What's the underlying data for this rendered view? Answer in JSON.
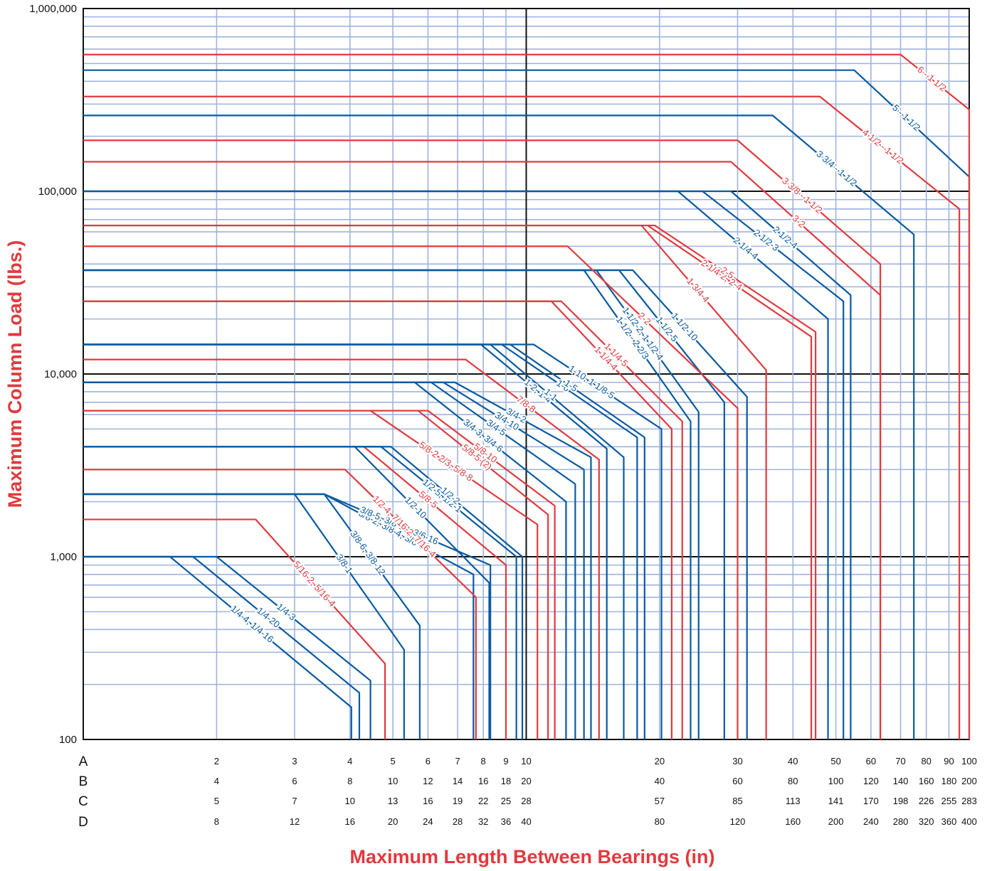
{
  "chart_data": {
    "type": "line",
    "title": "",
    "xlabel": "Maximum Length Between Bearings (in)",
    "ylabel": "Maximum Column Load (lbs.)",
    "yscale": "log",
    "xscale": "log",
    "ylim": [
      100,
      1000000
    ],
    "xlim_row_A": [
      1,
      100
    ],
    "y_tick_labels": [
      "100",
      "1,000",
      "10,000",
      "100,000",
      "1,000,000"
    ],
    "x_scales": [
      {
        "name": "A",
        "ticks": [
          2,
          3,
          4,
          5,
          6,
          7,
          8,
          9,
          10,
          20,
          30,
          40,
          50,
          60,
          70,
          80,
          90,
          100
        ]
      },
      {
        "name": "B",
        "ticks": [
          4,
          6,
          8,
          10,
          12,
          14,
          16,
          18,
          20,
          40,
          60,
          80,
          100,
          120,
          140,
          160,
          180,
          200
        ]
      },
      {
        "name": "C",
        "ticks": [
          5,
          7,
          10,
          13,
          16,
          19,
          22,
          25,
          28,
          57,
          85,
          113,
          141,
          170,
          198,
          226,
          255,
          283
        ]
      },
      {
        "name": "D",
        "ticks": [
          8,
          12,
          16,
          20,
          24,
          28,
          32,
          36,
          40,
          80,
          120,
          160,
          200,
          240,
          280,
          320,
          360,
          400
        ]
      }
    ],
    "colors": {
      "red": "#e03a3e",
      "blue": "#0a5aa0",
      "grid": "#9fb3de",
      "axis": "#111111"
    },
    "series": [
      {
        "name": "1/4-4, 1/4-16",
        "color": "blue",
        "load": 1000,
        "x_start": 1.57,
        "x_end": 4.03,
        "y_end": 150
      },
      {
        "name": "1/4-20",
        "color": "blue",
        "load": 1000,
        "x_start": 1.77,
        "x_end": 4.2,
        "y_end": 180
      },
      {
        "name": "1/4-3",
        "color": "blue",
        "load": 1000,
        "x_start": 2.0,
        "x_end": 4.45,
        "y_end": 210
      },
      {
        "name": "5/16-2, 5/16-4",
        "color": "red",
        "load": 1600,
        "x_start": 2.45,
        "x_end": 4.8,
        "y_end": 260
      },
      {
        "name": "3/8-1",
        "color": "blue",
        "load": 2200,
        "x_start": 3.0,
        "x_end": 5.3,
        "y_end": 310
      },
      {
        "name": "3/8-6, 3/8-12",
        "color": "blue",
        "load": 2200,
        "x_start": 3.5,
        "x_end": 5.75,
        "y_end": 420
      },
      {
        "name": "3/8-2, 3/8-4, 3/8-8",
        "color": "blue",
        "load": 2200,
        "x_start": 3.5,
        "x_end": 7.6,
        "y_end": 800
      },
      {
        "name": "3/8-5, 3/8-10, 3/6-16",
        "color": "blue",
        "load": 2200,
        "x_start": 3.5,
        "x_end": 8.3,
        "y_end": 900
      },
      {
        "name": "1/2-4, 7/16-2, 7/16-4",
        "color": "red",
        "load": 3000,
        "x_start": 3.9,
        "x_end": 7.7,
        "y_end": 600
      },
      {
        "name": "1/2-10",
        "color": "blue",
        "load": 4000,
        "x_start": 4.1,
        "x_end": 8.25,
        "y_end": 720
      },
      {
        "name": "5/8-5",
        "color": "red",
        "load": 4000,
        "x_start": 4.3,
        "x_end": 9.0,
        "y_end": 900
      },
      {
        "name": "1/2-5, 1/2-1",
        "color": "blue",
        "load": 4000,
        "x_start": 4.7,
        "x_end": 9.5,
        "y_end": 1000
      },
      {
        "name": "1/2-2",
        "color": "blue",
        "load": 4000,
        "x_start": 4.95,
        "x_end": 9.8,
        "y_end": 1000
      },
      {
        "name": "5/8-2 2/3, 5/8-8",
        "color": "red",
        "load": 6300,
        "x_start": 4.45,
        "x_end": 10.6,
        "y_end": 1500
      },
      {
        "name": "5/8-5 (2)",
        "color": "red",
        "load": 6300,
        "x_start": 5.7,
        "x_end": 11.2,
        "y_end": 1700
      },
      {
        "name": "5/8-10",
        "color": "red",
        "load": 6300,
        "x_start": 6.0,
        "x_end": 11.6,
        "y_end": 1900
      },
      {
        "name": "3/4-3, 3/4-6",
        "color": "blue",
        "load": 9000,
        "x_start": 5.6,
        "x_end": 12.3,
        "y_end": 2000
      },
      {
        "name": "3/4-5",
        "color": "blue",
        "load": 9000,
        "x_start": 6.1,
        "x_end": 12.9,
        "y_end": 2500
      },
      {
        "name": "3/4-10",
        "color": "blue",
        "load": 9000,
        "x_start": 6.5,
        "x_end": 13.5,
        "y_end": 3000
      },
      {
        "name": "3/4-2",
        "color": "blue",
        "load": 9000,
        "x_start": 6.9,
        "x_end": 14.0,
        "y_end": 3500
      },
      {
        "name": "7/8-8",
        "color": "red",
        "load": 12000,
        "x_start": 7.3,
        "x_end": 14.6,
        "y_end": 3400
      },
      {
        "name": "1-2, 1-4",
        "color": "blue",
        "load": 14500,
        "x_start": 7.9,
        "x_end": 15.2,
        "y_end": 3900
      },
      {
        "name": "1-1",
        "color": "blue",
        "load": 14500,
        "x_start": 8.3,
        "x_end": 16.6,
        "y_end": 3500
      },
      {
        "name": "1-6",
        "color": "blue",
        "load": 14500,
        "x_start": 8.8,
        "x_end": 17.8,
        "y_end": 4500
      },
      {
        "name": "1-5",
        "color": "blue",
        "load": 14500,
        "x_start": 9.2,
        "x_end": 18.5,
        "y_end": 4500
      },
      {
        "name": "1-10, 1 1/8-5",
        "color": "blue",
        "load": 14500,
        "x_start": 10.4,
        "x_end": 20.2,
        "y_end": 5000
      },
      {
        "name": "1 1/4-4",
        "color": "red",
        "load": 25000,
        "x_start": 11.4,
        "x_end": 21.3,
        "y_end": 5000
      },
      {
        "name": "1 1/4-5",
        "color": "red",
        "load": 25000,
        "x_start": 12.0,
        "x_end": 22.5,
        "y_end": 5500
      },
      {
        "name": "1 1/2 - 2 2/3",
        "color": "blue",
        "load": 37000,
        "x_start": 13.5,
        "x_end": 23.5,
        "y_end": 5500
      },
      {
        "name": "1 1/2-2, 1 1/2-4",
        "color": "blue",
        "load": 37000,
        "x_start": 14.4,
        "x_end": 24.5,
        "y_end": 6200
      },
      {
        "name": "1 1/2-5",
        "color": "blue",
        "load": 37000,
        "x_start": 16.2,
        "x_end": 28.0,
        "y_end": 7000
      },
      {
        "name": "1 1/2-10",
        "color": "blue",
        "load": 37000,
        "x_start": 17.4,
        "x_end": 31.5,
        "y_end": 7500
      },
      {
        "name": "2-2",
        "color": "red",
        "load": 50000,
        "x_start": 12.4,
        "x_end": 30.0,
        "y_end": 6500
      },
      {
        "name": "1 3/4-4",
        "color": "red",
        "load": 65000,
        "x_start": 18.2,
        "x_end": 34.8,
        "y_end": 10500
      },
      {
        "name": "2 1/4-2, 2-4",
        "color": "red",
        "load": 65000,
        "x_start": 18.8,
        "x_end": 44.0,
        "y_end": 16000
      },
      {
        "name": "2-5",
        "color": "red",
        "load": 65000,
        "x_start": 19.5,
        "x_end": 45.0,
        "y_end": 17000
      },
      {
        "name": "2 1/4-4",
        "color": "blue",
        "load": 100000,
        "x_start": 22.0,
        "x_end": 48.0,
        "y_end": 20000
      },
      {
        "name": "2 1/2-3",
        "color": "blue",
        "load": 100000,
        "x_start": 25.0,
        "x_end": 52.0,
        "y_end": 25000
      },
      {
        "name": "2 1/2-4",
        "color": "blue",
        "load": 100000,
        "x_start": 29.0,
        "x_end": 54.0,
        "y_end": 27000
      },
      {
        "name": "3-2",
        "color": "red",
        "load": 145000,
        "x_start": 29.0,
        "x_end": 63.0,
        "y_end": 27000
      },
      {
        "name": "3 3/8 - 1 1/2",
        "color": "red",
        "load": 190000,
        "x_start": 30.0,
        "x_end": 63.0,
        "y_end": 40000
      },
      {
        "name": "3 3/4 - 1 1/2",
        "color": "blue",
        "load": 260000,
        "x_start": 36.0,
        "x_end": 75.0,
        "y_end": 58000
      },
      {
        "name": "4 1/2 - 1 1/2",
        "color": "red",
        "load": 330000,
        "x_start": 46.0,
        "x_end": 95.0,
        "y_end": 80000
      },
      {
        "name": "5 - 1 1/2",
        "color": "blue",
        "load": 460000,
        "x_start": 55.0,
        "x_end": 100.0,
        "y_end": 120000
      },
      {
        "name": "6 - 1 1/2",
        "color": "red",
        "load": 560000,
        "x_start": 70.0,
        "x_end": 100.0,
        "y_end": 280000
      }
    ]
  }
}
